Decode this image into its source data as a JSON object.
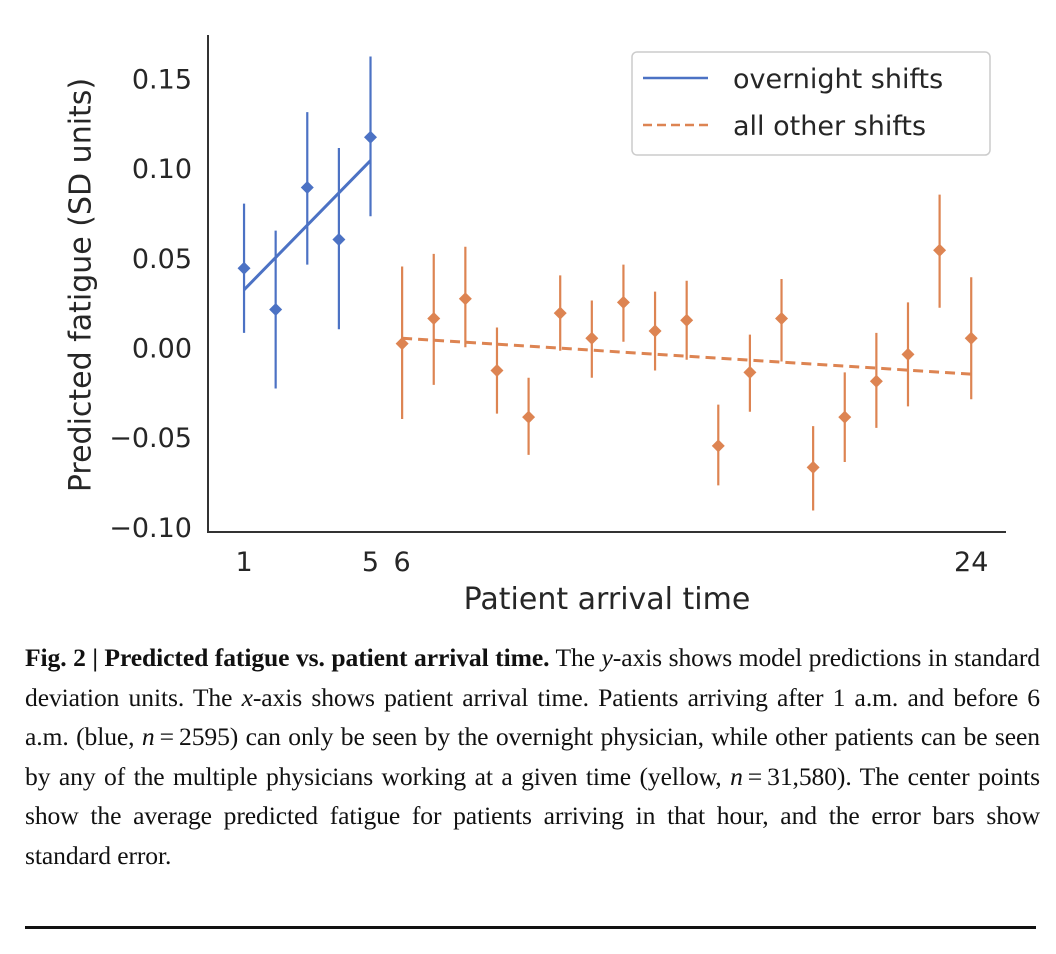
{
  "chart_data": {
    "type": "scatter",
    "title": "",
    "xlabel": "Patient arrival time",
    "ylabel": "Predicted fatigue (SD units)",
    "xlim": [
      -0.14,
      25.1
    ],
    "ylim": [
      -0.102,
      0.175
    ],
    "xticks": [
      1,
      5,
      6,
      24
    ],
    "xtick_labels": [
      "1",
      "5",
      "6",
      "24"
    ],
    "yticks": [
      0.15,
      0.1,
      0.05,
      0.0,
      -0.05,
      -0.1
    ],
    "ytick_labels": [
      "0.15",
      "0.10",
      "0.05",
      "0.00",
      "−0.05",
      "−0.10"
    ],
    "grid": false,
    "legend_position": "top-right",
    "series": [
      {
        "name": "overnight shifts",
        "color": "#4C72C4",
        "line_style": "solid",
        "marker": "diamond",
        "x": [
          1,
          2,
          3,
          4,
          5
        ],
        "y": [
          0.045,
          0.022,
          0.09,
          0.061,
          0.118
        ],
        "err_low": [
          0.009,
          -0.022,
          0.047,
          0.011,
          0.074
        ],
        "err_high": [
          0.081,
          0.066,
          0.132,
          0.112,
          0.163
        ],
        "trend": {
          "x": [
            1,
            5
          ],
          "y": [
            0.033,
            0.105
          ]
        }
      },
      {
        "name": "all other shifts",
        "color": "#DD8452",
        "line_style": "dashed",
        "marker": "diamond",
        "x": [
          6,
          7,
          8,
          9,
          10,
          11,
          12,
          13,
          14,
          15,
          16,
          17,
          18,
          19,
          20,
          21,
          22,
          23,
          24
        ],
        "y": [
          0.003,
          0.017,
          0.028,
          -0.012,
          -0.038,
          0.02,
          0.006,
          0.026,
          0.01,
          0.016,
          -0.054,
          -0.013,
          0.017,
          -0.066,
          -0.038,
          -0.018,
          -0.003,
          0.055,
          0.006
        ],
        "err_low": [
          -0.039,
          -0.02,
          0.001,
          -0.036,
          -0.059,
          -0.001,
          -0.016,
          0.004,
          -0.012,
          -0.006,
          -0.076,
          -0.035,
          -0.007,
          -0.09,
          -0.063,
          -0.044,
          -0.032,
          0.023,
          -0.028
        ],
        "err_high": [
          0.046,
          0.053,
          0.057,
          0.012,
          -0.016,
          0.041,
          0.027,
          0.047,
          0.032,
          0.038,
          -0.031,
          0.008,
          0.039,
          -0.043,
          -0.013,
          0.009,
          0.026,
          0.086,
          0.04
        ],
        "trend": {
          "x": [
            6,
            24
          ],
          "y": [
            0.006,
            -0.014
          ]
        }
      }
    ]
  },
  "caption": {
    "label": "Fig. 2 | Predicted fatigue vs. patient arrival time.",
    "seg1": " The ",
    "y_var": "y",
    "seg2": "-axis shows model predictions in standard deviation units. The ",
    "x_var": "x",
    "seg3": "-axis shows patient arrival time. Patients arriving after 1 a.m. and before 6 a.m. (blue, ",
    "n1_var": "n",
    "seg4": " = 2595) can only be seen by the overnight physician, while other patients can be seen by any of the multiple physicians working at a given time (yellow, ",
    "n2_var": "n",
    "seg5": " = 31,580). The center points show the average predicted fatigue for patients arriving in that hour, and the error bars show standard error."
  }
}
